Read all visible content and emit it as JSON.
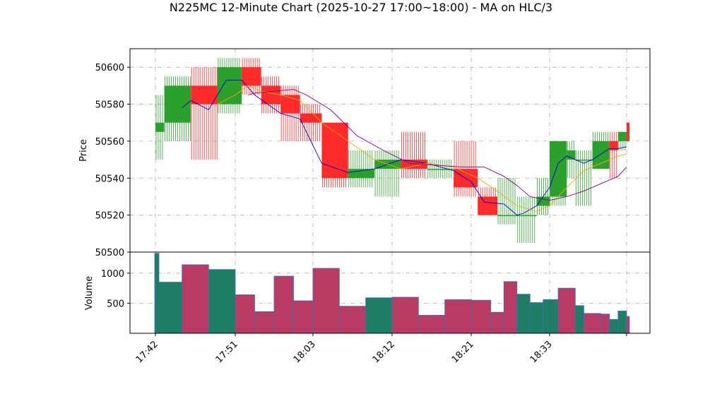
{
  "chart_data": [
    {
      "type": "candlestick",
      "title": "N225MC 12-Minute Chart (2025-10-27 17:00~18:00) - MA on HLC/3",
      "ylabel": "Price",
      "ylim": [
        50500,
        50610
      ],
      "yticks": [
        50500,
        50520,
        50540,
        50560,
        50580,
        50600
      ],
      "xticks": [
        "17:42",
        "17:51",
        "18:03",
        "18:12",
        "18:21",
        "18:33"
      ],
      "grid": true,
      "colors": {
        "up": "#2ca02c",
        "down": "#ff2b2b",
        "ma_fast": "#0000cc",
        "ma_mid": "#ffa500",
        "ma_slow": "#800080"
      },
      "candles": [
        {
          "time": "17:42",
          "open": 50565,
          "high": 50585,
          "low": 50550,
          "close": 50570
        },
        {
          "time": "17:43",
          "open": 50570,
          "high": 50595,
          "low": 50560,
          "close": 50590
        },
        {
          "time": "17:46",
          "open": 50590,
          "high": 50600,
          "low": 50550,
          "close": 50580
        },
        {
          "time": "17:49",
          "open": 50580,
          "high": 50605,
          "low": 50575,
          "close": 50600
        },
        {
          "time": "17:52",
          "open": 50600,
          "high": 50605,
          "low": 50585,
          "close": 50590
        },
        {
          "time": "17:55",
          "open": 50590,
          "high": 50595,
          "low": 50575,
          "close": 50580
        },
        {
          "time": "17:58",
          "open": 50585,
          "high": 50590,
          "low": 50560,
          "close": 50575
        },
        {
          "time": "18:01",
          "open": 50575,
          "high": 50580,
          "low": 50560,
          "close": 50570
        },
        {
          "time": "18:04",
          "open": 50570,
          "high": 50570,
          "low": 50535,
          "close": 50540
        },
        {
          "time": "18:07",
          "open": 50540,
          "high": 50555,
          "low": 50535,
          "close": 50545
        },
        {
          "time": "18:10",
          "open": 50545,
          "high": 50555,
          "low": 50530,
          "close": 50550
        },
        {
          "time": "18:13",
          "open": 50550,
          "high": 50565,
          "low": 50540,
          "close": 50545
        },
        {
          "time": "18:16",
          "open": 50545,
          "high": 50550,
          "low": 50540,
          "close": 50545
        },
        {
          "time": "18:19",
          "open": 50545,
          "high": 50560,
          "low": 50530,
          "close": 50535
        },
        {
          "time": "18:22",
          "open": 50530,
          "high": 50535,
          "low": 50520,
          "close": 50520
        },
        {
          "time": "18:25",
          "open": 50520,
          "high": 50540,
          "low": 50515,
          "close": 50520
        },
        {
          "time": "18:28",
          "open": 50520,
          "high": 50530,
          "low": 50505,
          "close": 50520
        },
        {
          "time": "18:31",
          "open": 50525,
          "high": 50540,
          "low": 50520,
          "close": 50530
        },
        {
          "time": "18:33",
          "open": 50530,
          "high": 50560,
          "low": 50525,
          "close": 50560
        },
        {
          "time": "18:35",
          "open": 50550,
          "high": 50560,
          "low": 50540,
          "close": 50555
        },
        {
          "time": "18:36",
          "open": 50550,
          "high": 50555,
          "low": 50525,
          "close": 50550
        },
        {
          "time": "18:38",
          "open": 50545,
          "high": 50565,
          "low": 50545,
          "close": 50560
        },
        {
          "time": "18:40",
          "open": 50560,
          "high": 50565,
          "low": 50540,
          "close": 50555
        },
        {
          "time": "18:41",
          "open": 50560,
          "high": 50565,
          "low": 50555,
          "close": 50565
        },
        {
          "time": "18:42",
          "open": 50570,
          "high": 50570,
          "low": 50560,
          "close": 50560
        }
      ],
      "ma_series": [
        {
          "times": [
            "17:45",
            "17:46",
            "17:48",
            "17:50",
            "17:52",
            "17:54",
            "17:56",
            "17:58",
            "18:01",
            "18:04",
            "18:07",
            "18:10",
            "18:13",
            "18:16",
            "18:19",
            "18:21",
            "18:23",
            "18:26",
            "18:28",
            "18:29",
            "18:31",
            "18:33",
            "18:34",
            "18:35",
            "18:36",
            "18:37",
            "18:38",
            "18:39",
            "18:40",
            "18:41",
            "18:42"
          ],
          "values": [
            50578,
            50582,
            50577,
            50593,
            50593,
            50585,
            50580,
            50575,
            50572,
            50548,
            50543,
            50545,
            50550,
            50548,
            50544,
            50538,
            50527,
            50526,
            50520,
            50521,
            50525,
            50535,
            50548,
            50552,
            50550,
            50548,
            50550,
            50553,
            50556,
            50556,
            50557
          ]
        },
        {
          "times": [
            "17:49",
            "17:51",
            "17:53",
            "17:55",
            "17:58",
            "18:01",
            "18:04",
            "18:07",
            "18:10",
            "18:13",
            "18:16",
            "18:19",
            "18:22",
            "18:25",
            "18:28",
            "18:31",
            "18:33",
            "18:35",
            "18:37",
            "18:39",
            "18:41",
            "18:42"
          ],
          "values": [
            50580,
            50585,
            50590,
            50587,
            50585,
            50582,
            50570,
            50560,
            50550,
            50545,
            50548,
            50546,
            50540,
            50533,
            50525,
            50522,
            50525,
            50535,
            50544,
            50548,
            50552,
            50553
          ]
        },
        {
          "times": [
            "17:53",
            "17:54",
            "17:57",
            "18:00",
            "18:02",
            "18:05",
            "18:08",
            "18:11",
            "18:14",
            "18:17",
            "18:20",
            "18:23",
            "18:26",
            "18:28",
            "18:30",
            "18:33",
            "18:35",
            "18:37",
            "18:39",
            "18:41",
            "18:42"
          ],
          "values": [
            50585,
            50586,
            50587,
            50588,
            50585,
            50577,
            50563,
            50555,
            50548,
            50547,
            50546,
            50546,
            50541,
            50536,
            50530,
            50528,
            50530,
            50533,
            50537,
            50541,
            50546
          ]
        }
      ]
    },
    {
      "type": "bar",
      "ylabel": "Volume",
      "ylim": [
        0,
        1350
      ],
      "yticks": [
        500,
        1000
      ],
      "colors": {
        "up": "#1a7f5a",
        "down": "#c7355a",
        "edge": "#3c6fbf"
      },
      "bars": [
        {
          "start": "17:42",
          "end": "17:42",
          "value": 1330,
          "dir": "up"
        },
        {
          "start": "17:42",
          "end": "17:45",
          "value": 850,
          "dir": "up"
        },
        {
          "start": "17:45",
          "end": "17:48",
          "value": 1140,
          "dir": "down"
        },
        {
          "start": "17:48",
          "end": "17:51",
          "value": 1060,
          "dir": "up"
        },
        {
          "start": "17:51",
          "end": "17:54",
          "value": 640,
          "dir": "down"
        },
        {
          "start": "17:54",
          "end": "17:57",
          "value": 360,
          "dir": "down"
        },
        {
          "start": "17:57",
          "end": "18:00",
          "value": 950,
          "dir": "down"
        },
        {
          "start": "18:00",
          "end": "18:03",
          "value": 540,
          "dir": "down"
        },
        {
          "start": "18:03",
          "end": "18:06",
          "value": 1080,
          "dir": "down"
        },
        {
          "start": "18:06",
          "end": "18:09",
          "value": 450,
          "dir": "down"
        },
        {
          "start": "18:09",
          "end": "18:12",
          "value": 590,
          "dir": "up"
        },
        {
          "start": "18:12",
          "end": "18:15",
          "value": 600,
          "dir": "down"
        },
        {
          "start": "18:15",
          "end": "18:18",
          "value": 300,
          "dir": "down"
        },
        {
          "start": "18:18",
          "end": "18:21",
          "value": 560,
          "dir": "down"
        },
        {
          "start": "18:21",
          "end": "18:24",
          "value": 550,
          "dir": "down"
        },
        {
          "start": "18:24",
          "end": "18:26",
          "value": 350,
          "dir": "down"
        },
        {
          "start": "18:26",
          "end": "18:28",
          "value": 860,
          "dir": "down"
        },
        {
          "start": "18:28",
          "end": "18:30",
          "value": 650,
          "dir": "up"
        },
        {
          "start": "18:30",
          "end": "18:32",
          "value": 510,
          "dir": "up"
        },
        {
          "start": "18:32",
          "end": "18:34",
          "value": 560,
          "dir": "up"
        },
        {
          "start": "18:34",
          "end": "18:36",
          "value": 750,
          "dir": "down"
        },
        {
          "start": "18:36",
          "end": "18:37",
          "value": 460,
          "dir": "up"
        },
        {
          "start": "18:37",
          "end": "18:39",
          "value": 330,
          "dir": "down"
        },
        {
          "start": "18:39",
          "end": "18:40",
          "value": 320,
          "dir": "down"
        },
        {
          "start": "18:40",
          "end": "18:41",
          "value": 230,
          "dir": "up"
        },
        {
          "start": "18:41",
          "end": "18:42",
          "value": 370,
          "dir": "up"
        },
        {
          "start": "18:42",
          "end": "18:42",
          "value": 280,
          "dir": "down"
        }
      ]
    }
  ]
}
